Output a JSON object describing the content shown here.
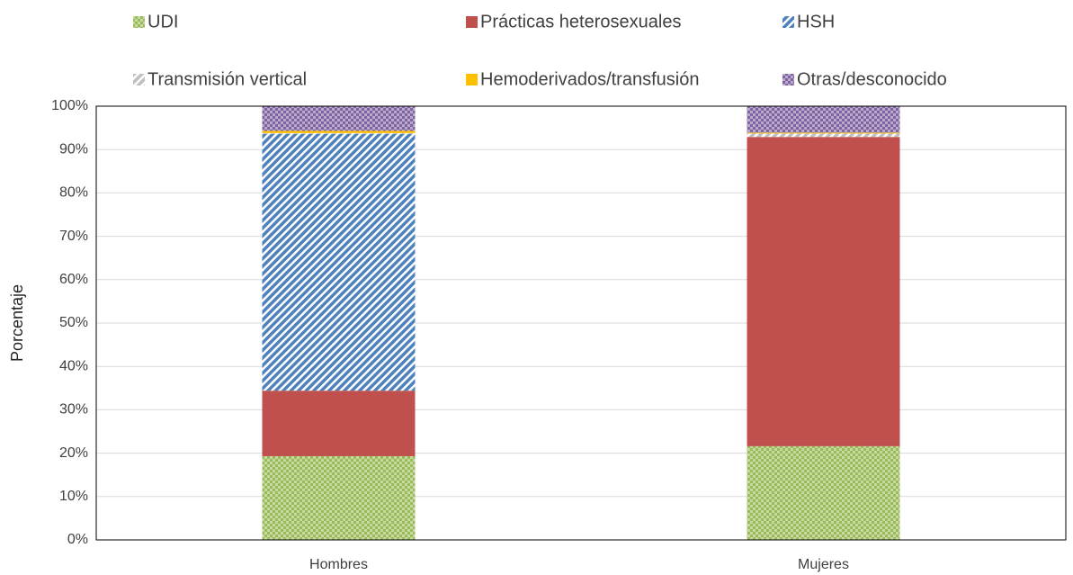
{
  "chart_data": {
    "type": "stacked_bar",
    "categories": [
      "Hombres",
      "Mujeres"
    ],
    "ylabel": "Porcentaje",
    "ylim": [
      0,
      100
    ],
    "yticks": [
      {
        "value": 0,
        "label": "0%"
      },
      {
        "value": 10,
        "label": "10%"
      },
      {
        "value": 20,
        "label": "20%"
      },
      {
        "value": 30,
        "label": "30%"
      },
      {
        "value": 40,
        "label": "40%"
      },
      {
        "value": 50,
        "label": "50%"
      },
      {
        "value": 60,
        "label": "60%"
      },
      {
        "value": 70,
        "label": "70%"
      },
      {
        "value": 80,
        "label": "80%"
      },
      {
        "value": 90,
        "label": "90%"
      },
      {
        "value": 100,
        "label": "100%"
      }
    ],
    "grid": true,
    "legend": "top",
    "series": [
      {
        "name": "UDI",
        "color": "#9bbb59",
        "pattern": "checker",
        "values": [
          19.3,
          21.6
        ]
      },
      {
        "name": "Prácticas heterosexuales",
        "color": "#c0504d",
        "pattern": "solid",
        "values": [
          15.1,
          71.3
        ]
      },
      {
        "name": "HSH",
        "color": "#4f81bd",
        "pattern": "stripes",
        "values": [
          59.2,
          0
        ]
      },
      {
        "name": "Transmisión vertical",
        "color": "#bfbfbf",
        "pattern": "stripes",
        "values": [
          0.2,
          0.8
        ]
      },
      {
        "name": "Hemoderivados/transfusión",
        "color": "#ffc000",
        "pattern": "solid",
        "values": [
          0.5,
          0.2
        ]
      },
      {
        "name": "Otras/desconocido",
        "color": "#8064a2",
        "pattern": "checker",
        "values": [
          5.7,
          6.1
        ]
      }
    ]
  }
}
